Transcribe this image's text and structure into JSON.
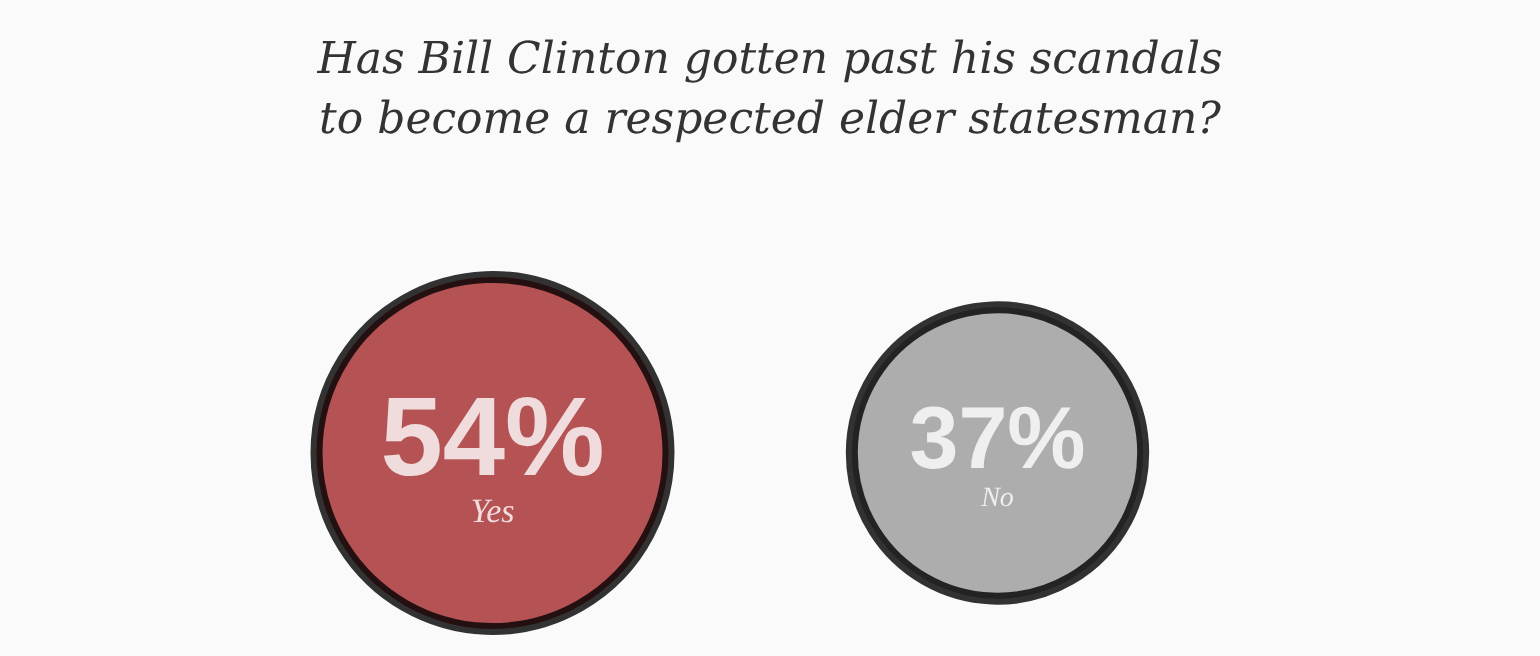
{
  "chart_data": {
    "type": "other",
    "title": "Has Bill Clinton gotten past his scandals\nto become a respected elder statesman?",
    "categories": [
      "Yes",
      "No"
    ],
    "values": [
      54,
      37
    ],
    "value_labels": [
      "54%",
      "37%"
    ],
    "colors": [
      "#a3282b",
      "#9a9a9a"
    ]
  }
}
